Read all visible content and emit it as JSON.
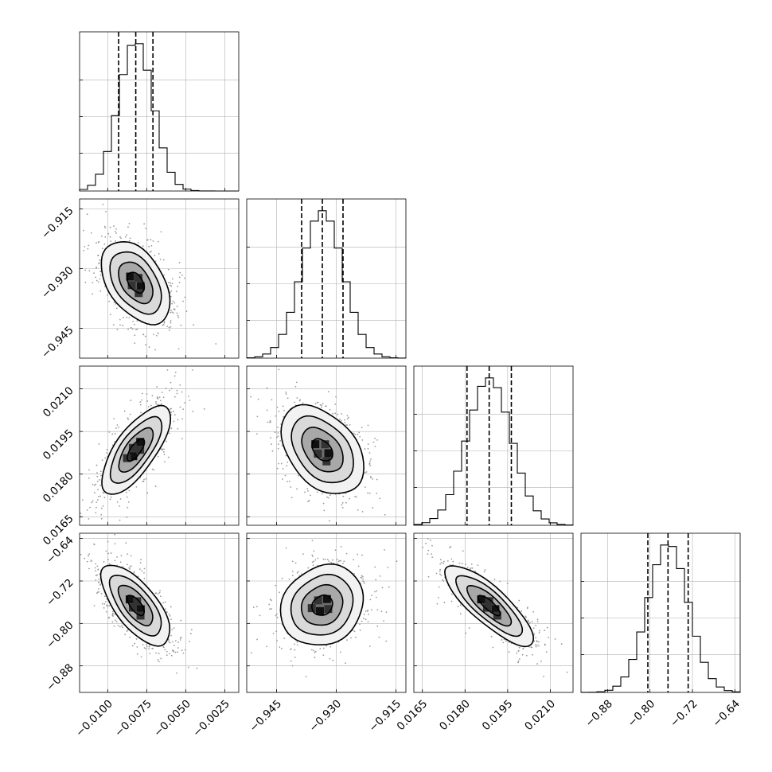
{
  "chart_data": {
    "type": "corner",
    "title": "",
    "n_params": 4,
    "params": [
      {
        "name": "",
        "mean": -0.0082,
        "sigma": 0.0011,
        "range": [
          -0.0118,
          -0.0016
        ],
        "quantiles": [
          -0.0093,
          -0.0082,
          -0.0071
        ],
        "ticks": [
          -0.01,
          -0.0075,
          -0.005,
          -0.0025
        ],
        "tick_labels": [
          "−0.0100",
          "−0.0075",
          "−0.0050",
          "−0.0025"
        ]
      },
      {
        "name": "",
        "mean": -0.9335,
        "sigma": 0.0052,
        "range": [
          -0.9525,
          -0.9125
        ],
        "quantiles": [
          -0.9387,
          -0.9335,
          -0.9283
        ],
        "ticks": [
          -0.945,
          -0.93,
          -0.915
        ],
        "tick_labels": [
          "−0.945",
          "−0.930",
          "−0.915"
        ]
      },
      {
        "name": "",
        "mean": 0.01885,
        "sigma": 0.00078,
        "range": [
          0.0162,
          0.0218
        ],
        "quantiles": [
          0.01807,
          0.01885,
          0.01963
        ],
        "ticks": [
          0.0165,
          0.018,
          0.0195,
          0.021
        ],
        "tick_labels": [
          "0.0165",
          "0.0180",
          "0.0195",
          "0.0210"
        ]
      },
      {
        "name": "",
        "mean": -0.766,
        "sigma": 0.038,
        "range": [
          -0.93,
          -0.63
        ],
        "quantiles": [
          -0.804,
          -0.766,
          -0.728
        ],
        "ticks": [
          -0.88,
          -0.8,
          -0.72,
          -0.64
        ],
        "tick_labels": [
          "−0.88",
          "−0.80",
          "−0.72",
          "−0.64"
        ]
      }
    ],
    "correlations": {
      "1-0": -0.45,
      "2-0": 0.72,
      "2-1": -0.4,
      "3-0": -0.68,
      "3-1": 0.15,
      "3-2": -0.82
    },
    "quantile_levels": [
      0.16,
      0.5,
      0.84
    ],
    "contour_levels_sigma": [
      0.5,
      1.0,
      1.5,
      2.0
    ],
    "hist_bins": 20,
    "grid": true,
    "legend": "none",
    "colors": {
      "line": "#000000",
      "samples": "#9a9a9a",
      "grid": "#b0b0b0"
    }
  }
}
